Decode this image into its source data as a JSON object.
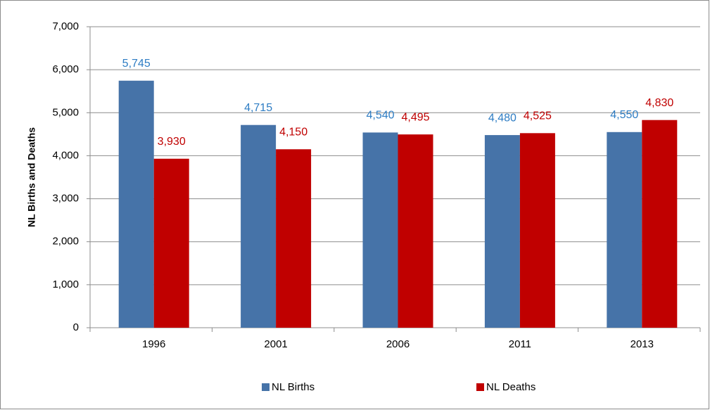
{
  "chart_data": {
    "type": "bar",
    "y_label": "NL Births and Deaths",
    "categories": [
      "1996",
      "2001",
      "2006",
      "2011",
      "2013"
    ],
    "series": [
      {
        "name": "NL Births",
        "color": "#4673a8",
        "label_color": "#2e7dc4",
        "values": [
          5745,
          4715,
          4540,
          4480,
          4550
        ],
        "value_labels": [
          "5,745",
          "4,715",
          "4,540",
          "4,480",
          "4,550"
        ]
      },
      {
        "name": "NL Deaths",
        "color": "#c00000",
        "label_color": "#c00000",
        "values": [
          3930,
          4150,
          4495,
          4525,
          4830
        ],
        "value_labels": [
          "3,930",
          "4,150",
          "4,495",
          "4,525",
          "4,830"
        ]
      }
    ],
    "ylim": [
      0,
      7000
    ],
    "yticks": [
      0,
      {
        "value": 1000,
        "label": "1,000"
      },
      {
        "value": 2000,
        "label": "2,000"
      },
      {
        "value": 3000,
        "label": "3,000"
      },
      {
        "value": 4000,
        "label": "4,000"
      },
      {
        "value": 5000,
        "label": "5,000"
      },
      {
        "value": 6000,
        "label": "6,000"
      },
      {
        "value": 7000,
        "label": "7,000"
      }
    ],
    "grid": true,
    "legend": "bottom"
  }
}
